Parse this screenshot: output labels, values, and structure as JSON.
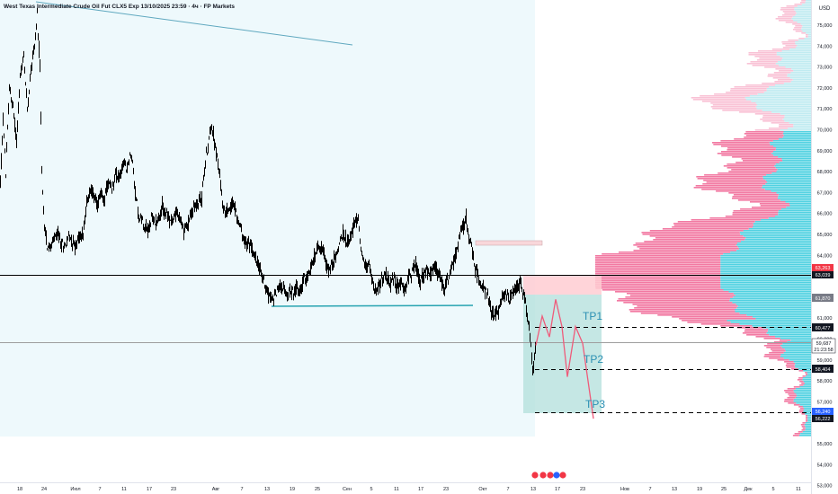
{
  "header": {
    "title": "West Texas Intermediate Crude Oil Fut CLX5 Exp 13/10/2025 23:59 · 4ч · FP Markets"
  },
  "axis": {
    "currency": "USD",
    "y_ticks": [
      "75,000",
      "74,000",
      "73,000",
      "72,000",
      "71,000",
      "70,000",
      "69,000",
      "68,000",
      "67,000",
      "66,000",
      "65,000",
      "64,000",
      "61,000",
      "60,000",
      "59,000",
      "58,000",
      "57,000",
      "55,000",
      "54,000",
      "53,000"
    ],
    "x_ticks": [
      "18",
      "24",
      "Июл",
      "7",
      "11",
      "17",
      "23",
      "Авг",
      "7",
      "13",
      "19",
      "25",
      "Сен",
      "5",
      "11",
      "17",
      "23",
      "Окт",
      "7",
      "13",
      "17",
      "23",
      "Нов",
      "7",
      "13",
      "19",
      "25",
      "Дек",
      "5",
      "11"
    ]
  },
  "price_labels": {
    "red_top": "63,263",
    "black_line": "63,039",
    "gray_mid": "61,870",
    "tp1_price": "60,477",
    "current_price": "59,687",
    "countdown": "21:23:58",
    "tp2_price": "58,404",
    "tp3_blue": "56,240",
    "tp3_black": "56,222"
  },
  "targets": {
    "tp1": "TP1",
    "tp2": "TP2",
    "tp3": "TP3"
  },
  "colors": {
    "price_bars": "#000000",
    "support_line": "#26a3b0",
    "trend_line": "#5fa8bf",
    "profile_pink": "#f06292",
    "profile_cyan": "#26c6da",
    "tp_zone": "#b2dfdb",
    "sl_zone": "#ffcdd2",
    "projection": "#ef5b7a",
    "label_red": "#f23645",
    "label_blue": "#2962ff"
  },
  "chart_data": {
    "type": "line",
    "title": "West Texas Intermediate Crude Oil Fut CLX5 Exp 13/10/2025 23:59 · 4ч · FP Markets",
    "timeframe": "4ч",
    "ylabel": "USD",
    "ylim": [
      52.6,
      76.2
    ],
    "series": [
      {
        "values": [
          [
            0,
            67.5
          ],
          [
            3,
            70.5
          ],
          [
            6,
            68
          ],
          [
            10,
            72
          ],
          [
            14,
            71
          ],
          [
            18,
            69.5
          ],
          [
            22,
            72.5
          ],
          [
            26,
            73.5
          ],
          [
            30,
            71
          ],
          [
            34,
            73
          ],
          [
            38,
            74
          ],
          [
            41,
            75.5
          ],
          [
            44,
            73
          ],
          [
            46,
            68
          ],
          [
            48,
            66
          ],
          [
            52,
            64.5
          ],
          [
            56,
            64.3
          ],
          [
            60,
            64.8
          ],
          [
            64,
            65
          ],
          [
            68,
            64.5
          ],
          [
            72,
            64.5
          ],
          [
            76,
            64.9
          ],
          [
            80,
            64.7
          ],
          [
            84,
            64.4
          ],
          [
            88,
            64.9
          ],
          [
            92,
            65
          ],
          [
            96,
            66.5
          ],
          [
            100,
            67.2
          ],
          [
            104,
            66.8
          ],
          [
            108,
            66.5
          ],
          [
            112,
            67
          ],
          [
            116,
            66.7
          ],
          [
            120,
            67.5
          ],
          [
            124,
            67
          ],
          [
            128,
            68
          ],
          [
            132,
            67.6
          ],
          [
            136,
            68.3
          ],
          [
            140,
            68.1
          ],
          [
            144,
            68.8
          ],
          [
            147,
            68.5
          ],
          [
            150,
            67
          ],
          [
            152,
            66.5
          ],
          [
            154,
            65.6
          ],
          [
            156,
            65.9
          ],
          [
            160,
            65.5
          ],
          [
            164,
            65.2
          ],
          [
            168,
            65.7
          ],
          [
            172,
            65.6
          ],
          [
            176,
            65.8
          ],
          [
            180,
            66.3
          ],
          [
            184,
            66
          ],
          [
            188,
            65.7
          ],
          [
            192,
            65.6
          ],
          [
            196,
            66.2
          ],
          [
            200,
            65.6
          ],
          [
            204,
            65.2
          ],
          [
            208,
            65.4
          ],
          [
            212,
            66
          ],
          [
            216,
            66.3
          ],
          [
            220,
            66.5
          ],
          [
            224,
            66.8
          ],
          [
            228,
            68.5
          ],
          [
            232,
            69.5
          ],
          [
            235,
            70.3
          ],
          [
            238,
            69.5
          ],
          [
            241,
            68.6
          ],
          [
            244,
            67.8
          ],
          [
            247,
            66.5
          ],
          [
            250,
            66.1
          ],
          [
            254,
            66.2
          ],
          [
            258,
            66.5
          ],
          [
            262,
            66
          ],
          [
            266,
            65.5
          ],
          [
            270,
            64.8
          ],
          [
            274,
            64.5
          ],
          [
            278,
            64.5
          ],
          [
            282,
            64
          ],
          [
            286,
            63.7
          ],
          [
            290,
            63.1
          ],
          [
            294,
            62.6
          ],
          [
            298,
            62.2
          ],
          [
            302,
            61.9
          ],
          [
            306,
            62.2
          ],
          [
            310,
            62.5
          ],
          [
            314,
            62.6
          ],
          [
            318,
            62
          ],
          [
            322,
            62.3
          ],
          [
            326,
            62.1
          ],
          [
            330,
            62.6
          ],
          [
            334,
            62.4
          ],
          [
            338,
            62.8
          ],
          [
            342,
            63
          ],
          [
            346,
            63.4
          ],
          [
            350,
            64
          ],
          [
            354,
            64.5
          ],
          [
            358,
            64.3
          ],
          [
            362,
            63.6
          ],
          [
            366,
            63.3
          ],
          [
            370,
            63.7
          ],
          [
            374,
            64
          ],
          [
            378,
            64.8
          ],
          [
            382,
            65
          ],
          [
            386,
            64.7
          ],
          [
            390,
            65
          ],
          [
            394,
            65.5
          ],
          [
            398,
            65.8
          ],
          [
            402,
            64
          ],
          [
            406,
            63.5
          ],
          [
            410,
            63.4
          ],
          [
            414,
            62.8
          ],
          [
            418,
            62.3
          ],
          [
            422,
            62.6
          ],
          [
            426,
            62.9
          ],
          [
            430,
            63.1
          ],
          [
            434,
            62.6
          ],
          [
            438,
            62.9
          ],
          [
            442,
            62.5
          ],
          [
            446,
            62.7
          ],
          [
            450,
            62.3
          ],
          [
            454,
            63
          ],
          [
            458,
            63.2
          ],
          [
            462,
            63.6
          ],
          [
            466,
            62.8
          ],
          [
            470,
            63
          ],
          [
            474,
            63.3
          ],
          [
            478,
            63.1
          ],
          [
            482,
            63.6
          ],
          [
            486,
            63.1
          ],
          [
            490,
            62.7
          ],
          [
            494,
            62.4
          ],
          [
            498,
            62.9
          ],
          [
            502,
            63.4
          ],
          [
            506,
            64
          ],
          [
            510,
            64.7
          ],
          [
            514,
            65.3
          ],
          [
            518,
            65.8
          ],
          [
            521,
            64.9
          ],
          [
            524,
            64.5
          ],
          [
            527,
            63.5
          ],
          [
            530,
            63.2
          ],
          [
            534,
            62.6
          ],
          [
            538,
            62.4
          ],
          [
            542,
            61.9
          ],
          [
            546,
            61.4
          ],
          [
            550,
            61.1
          ],
          [
            554,
            61.3
          ],
          [
            558,
            61.9
          ],
          [
            562,
            62.2
          ],
          [
            566,
            61.9
          ],
          [
            570,
            62.3
          ],
          [
            574,
            62.5
          ],
          [
            578,
            62.7
          ],
          [
            581,
            62.2
          ],
          [
            584,
            61.9
          ],
          [
            587,
            60.8
          ],
          [
            590,
            59.8
          ],
          [
            592,
            58.4
          ],
          [
            594,
            59.2
          ],
          [
            596,
            59.7
          ]
        ]
      }
    ],
    "x_tick_labels": [
      "18",
      "24",
      "Июл",
      "7",
      "11",
      "17",
      "23",
      "Авг",
      "7",
      "13",
      "19",
      "25",
      "Сен",
      "5",
      "11",
      "17",
      "23",
      "Окт",
      "7",
      "13",
      "17",
      "23",
      "Нов",
      "7",
      "13",
      "19",
      "25",
      "Дек",
      "5",
      "11"
    ],
    "horizontal_levels": [
      63.039,
      59.687,
      60.477,
      58.404,
      56.222
    ],
    "projection": [
      [
        596,
        59.7
      ],
      [
        603,
        61.1
      ],
      [
        611,
        60.1
      ],
      [
        618,
        61.9
      ],
      [
        625,
        60.6
      ],
      [
        631,
        58.2
      ],
      [
        640,
        60.6
      ],
      [
        648,
        59.8
      ],
      [
        660,
        56.2
      ]
    ],
    "legend": "none",
    "grid": false
  }
}
